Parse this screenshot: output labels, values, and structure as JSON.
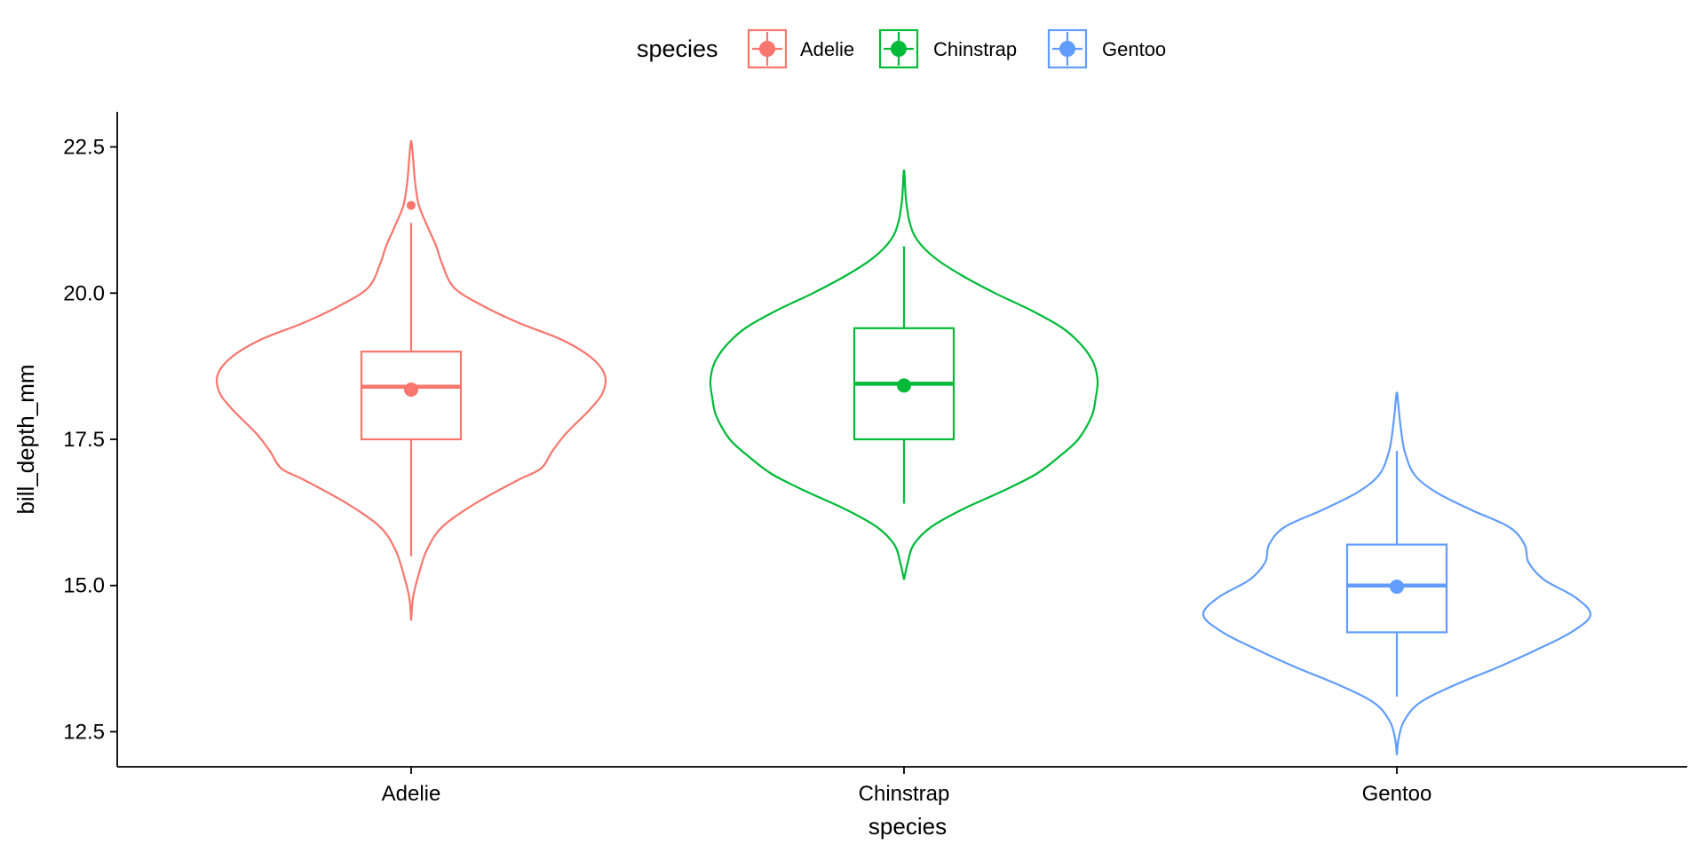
{
  "chart_data": {
    "type": "violin",
    "xlabel": "species",
    "ylabel": "bill_depth_mm",
    "categories": [
      "Adelie",
      "Chinstrap",
      "Gentoo"
    ],
    "ylim": [
      11.9,
      23.1
    ],
    "yticks": [
      12.5,
      15.0,
      17.5,
      20.0,
      22.5
    ],
    "ytick_labels": [
      "12.5",
      "15.0",
      "17.5",
      "20.0",
      "22.5"
    ],
    "grid": false,
    "legend": {
      "title": "species",
      "position": "top",
      "entries": [
        "Adelie",
        "Chinstrap",
        "Gentoo"
      ]
    },
    "series": [
      {
        "category": "Adelie",
        "color": "#F8766D",
        "violin_range": [
          14.4,
          22.6
        ],
        "violin_width_profile": [
          [
            14.4,
            0.0
          ],
          [
            14.8,
            0.01
          ],
          [
            15.2,
            0.04
          ],
          [
            15.6,
            0.08
          ],
          [
            16.0,
            0.16
          ],
          [
            16.4,
            0.33
          ],
          [
            16.8,
            0.55
          ],
          [
            17.0,
            0.67
          ],
          [
            17.3,
            0.73
          ],
          [
            17.6,
            0.8
          ],
          [
            18.0,
            0.92
          ],
          [
            18.3,
            0.99
          ],
          [
            18.6,
            1.0
          ],
          [
            18.9,
            0.93
          ],
          [
            19.2,
            0.78
          ],
          [
            19.5,
            0.55
          ],
          [
            19.8,
            0.36
          ],
          [
            20.1,
            0.22
          ],
          [
            20.5,
            0.16
          ],
          [
            20.8,
            0.13
          ],
          [
            21.1,
            0.09
          ],
          [
            21.5,
            0.04
          ],
          [
            21.9,
            0.02
          ],
          [
            22.3,
            0.01
          ],
          [
            22.6,
            0.0
          ]
        ],
        "box": {
          "q1": 17.5,
          "median": 18.4,
          "q3": 19.0,
          "whisker_low": 15.5,
          "whisker_high": 21.2
        },
        "mean": 18.35,
        "outliers": [
          21.5
        ]
      },
      {
        "category": "Chinstrap",
        "color": "#00BA38",
        "violin_range": [
          15.1,
          22.1
        ],
        "violin_width_profile": [
          [
            15.1,
            0.0
          ],
          [
            15.4,
            0.02
          ],
          [
            15.7,
            0.05
          ],
          [
            16.0,
            0.14
          ],
          [
            16.3,
            0.3
          ],
          [
            16.6,
            0.5
          ],
          [
            16.9,
            0.68
          ],
          [
            17.2,
            0.8
          ],
          [
            17.5,
            0.9
          ],
          [
            17.9,
            0.97
          ],
          [
            18.2,
            0.99
          ],
          [
            18.5,
            1.0
          ],
          [
            18.8,
            0.98
          ],
          [
            19.1,
            0.92
          ],
          [
            19.4,
            0.82
          ],
          [
            19.7,
            0.66
          ],
          [
            20.0,
            0.47
          ],
          [
            20.3,
            0.3
          ],
          [
            20.6,
            0.16
          ],
          [
            20.9,
            0.07
          ],
          [
            21.2,
            0.03
          ],
          [
            21.6,
            0.01
          ],
          [
            22.1,
            0.0
          ]
        ],
        "box": {
          "q1": 17.5,
          "median": 18.45,
          "q3": 19.4,
          "whisker_low": 16.4,
          "whisker_high": 20.8
        },
        "mean": 18.42,
        "outliers": []
      },
      {
        "category": "Gentoo",
        "color": "#619CFF",
        "violin_range": [
          12.1,
          18.3
        ],
        "violin_width_profile": [
          [
            12.1,
            0.0
          ],
          [
            12.4,
            0.01
          ],
          [
            12.7,
            0.04
          ],
          [
            13.0,
            0.12
          ],
          [
            13.3,
            0.3
          ],
          [
            13.6,
            0.52
          ],
          [
            13.9,
            0.72
          ],
          [
            14.2,
            0.9
          ],
          [
            14.5,
            1.0
          ],
          [
            14.8,
            0.92
          ],
          [
            15.1,
            0.76
          ],
          [
            15.4,
            0.68
          ],
          [
            15.7,
            0.66
          ],
          [
            16.0,
            0.58
          ],
          [
            16.3,
            0.38
          ],
          [
            16.6,
            0.2
          ],
          [
            16.9,
            0.09
          ],
          [
            17.3,
            0.04
          ],
          [
            17.7,
            0.02
          ],
          [
            18.0,
            0.01
          ],
          [
            18.3,
            0.0
          ]
        ],
        "box": {
          "q1": 14.2,
          "median": 15.0,
          "q3": 15.7,
          "whisker_low": 13.1,
          "whisker_high": 17.3
        },
        "mean": 14.98,
        "outliers": []
      }
    ]
  }
}
